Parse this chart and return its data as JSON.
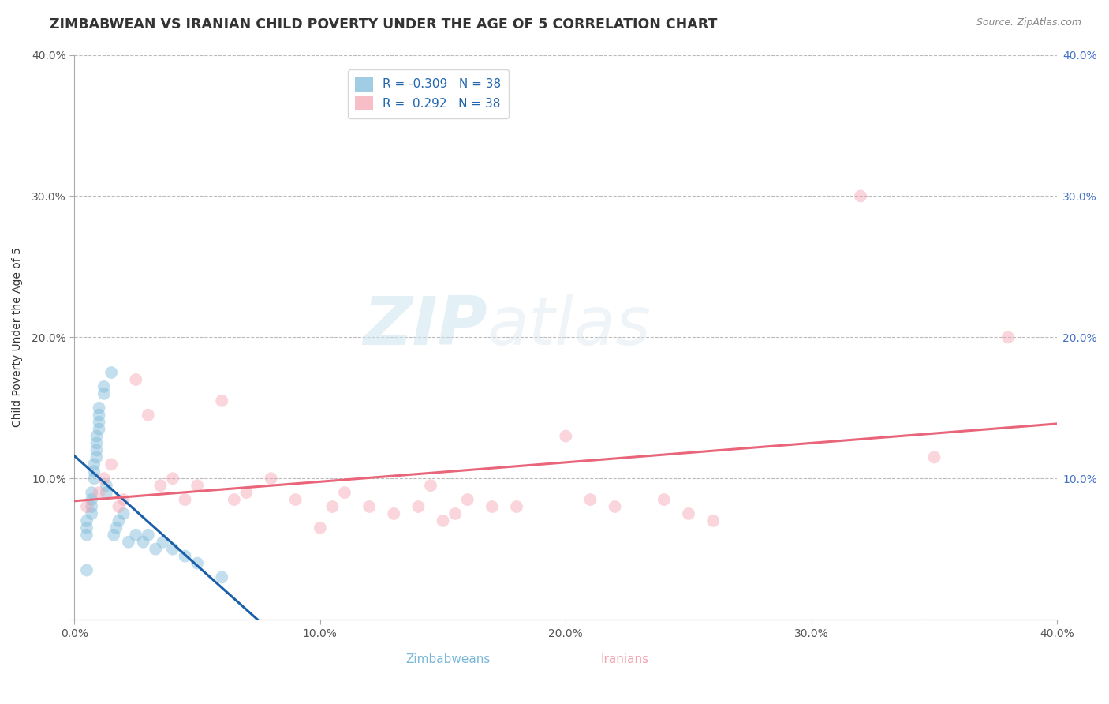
{
  "title": "ZIMBABWEAN VS IRANIAN CHILD POVERTY UNDER THE AGE OF 5 CORRELATION CHART",
  "source": "Source: ZipAtlas.com",
  "ylabel": "Child Poverty Under the Age of 5",
  "xlim": [
    0.0,
    0.4
  ],
  "ylim": [
    0.0,
    0.4
  ],
  "xtick_vals": [
    0.0,
    0.1,
    0.2,
    0.3,
    0.4
  ],
  "ytick_vals": [
    0.0,
    0.1,
    0.2,
    0.3,
    0.4
  ],
  "watermark_part1": "ZIP",
  "watermark_part2": "atlas",
  "zim_label": "Zimbabweans",
  "iran_label": "Iranians",
  "legend_r_zim": "R = -0.309",
  "legend_n_zim": "N = 38",
  "legend_r_iran": "R =  0.292",
  "legend_n_iran": "N = 38",
  "zimbabwean_x": [
    0.005,
    0.005,
    0.005,
    0.005,
    0.007,
    0.007,
    0.007,
    0.007,
    0.008,
    0.008,
    0.008,
    0.009,
    0.009,
    0.009,
    0.009,
    0.01,
    0.01,
    0.01,
    0.01,
    0.012,
    0.012,
    0.013,
    0.013,
    0.015,
    0.016,
    0.017,
    0.018,
    0.02,
    0.022,
    0.025,
    0.028,
    0.03,
    0.033,
    0.036,
    0.04,
    0.045,
    0.05,
    0.06
  ],
  "zimbabwean_y": [
    0.035,
    0.06,
    0.065,
    0.07,
    0.075,
    0.08,
    0.085,
    0.09,
    0.1,
    0.105,
    0.11,
    0.115,
    0.12,
    0.125,
    0.13,
    0.135,
    0.14,
    0.145,
    0.15,
    0.16,
    0.165,
    0.09,
    0.095,
    0.175,
    0.06,
    0.065,
    0.07,
    0.075,
    0.055,
    0.06,
    0.055,
    0.06,
    0.05,
    0.055,
    0.05,
    0.045,
    0.04,
    0.03
  ],
  "iranian_x": [
    0.005,
    0.01,
    0.012,
    0.015,
    0.018,
    0.02,
    0.025,
    0.03,
    0.035,
    0.04,
    0.045,
    0.05,
    0.06,
    0.065,
    0.07,
    0.08,
    0.09,
    0.1,
    0.105,
    0.11,
    0.12,
    0.13,
    0.14,
    0.145,
    0.15,
    0.155,
    0.16,
    0.17,
    0.18,
    0.2,
    0.21,
    0.22,
    0.24,
    0.25,
    0.26,
    0.32,
    0.35,
    0.38
  ],
  "iranian_y": [
    0.08,
    0.09,
    0.1,
    0.11,
    0.08,
    0.085,
    0.17,
    0.145,
    0.095,
    0.1,
    0.085,
    0.095,
    0.155,
    0.085,
    0.09,
    0.1,
    0.085,
    0.065,
    0.08,
    0.09,
    0.08,
    0.075,
    0.08,
    0.095,
    0.07,
    0.075,
    0.085,
    0.08,
    0.08,
    0.13,
    0.085,
    0.08,
    0.085,
    0.075,
    0.07,
    0.3,
    0.115,
    0.2
  ],
  "zim_color": "#7ab8d9",
  "iran_color": "#f4a3b0",
  "zim_line_color": "#1a5fa8",
  "iran_line_color": "#e8657a",
  "marker_size": 130,
  "marker_alpha": 0.45,
  "grid_color": "#bbbbbb",
  "background_color": "#ffffff",
  "title_fontsize": 12.5,
  "axis_label_fontsize": 10,
  "tick_fontsize": 10,
  "legend_fontsize": 11,
  "source_fontsize": 9
}
